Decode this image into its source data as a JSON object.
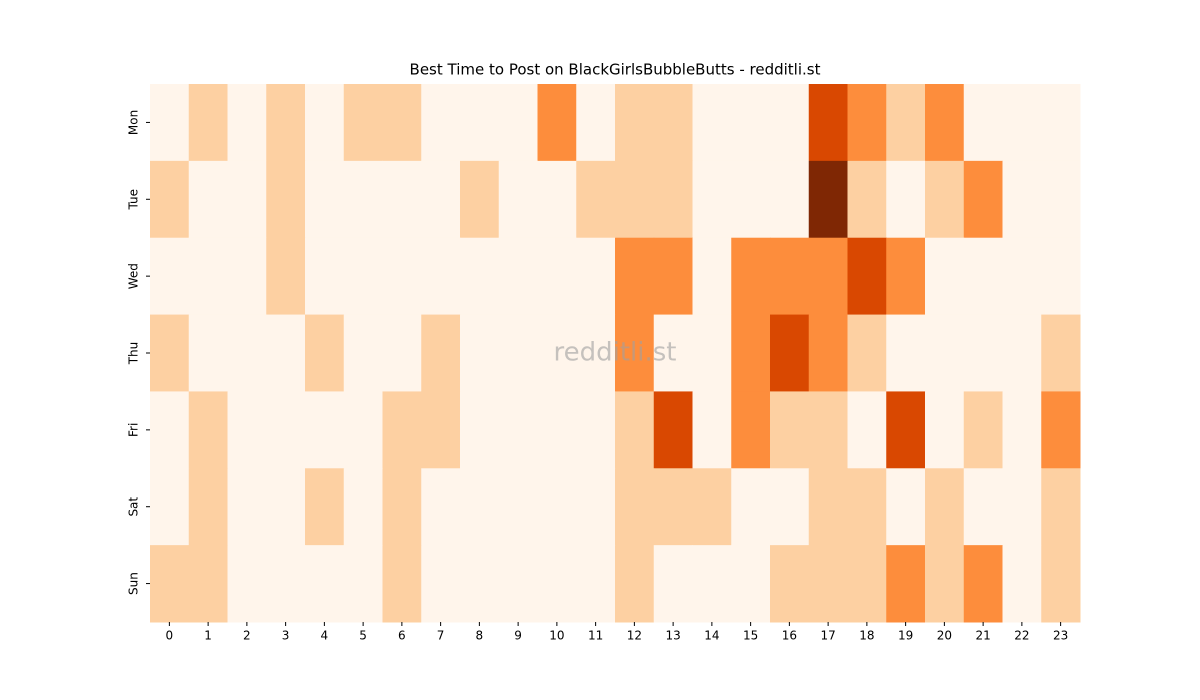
{
  "chart_data": {
    "type": "heatmap",
    "title": "Best Time to Post on BlackGirlsBubbleButts - redditli.st",
    "watermark": "redditli.st",
    "x_categories": [
      0,
      1,
      2,
      3,
      4,
      5,
      6,
      7,
      8,
      9,
      10,
      11,
      12,
      13,
      14,
      15,
      16,
      17,
      18,
      19,
      20,
      21,
      22,
      23
    ],
    "y_categories": [
      "Mon",
      "Tue",
      "Wed",
      "Thu",
      "Fri",
      "Sat",
      "Sun"
    ],
    "values": [
      [
        0,
        1,
        0,
        1,
        0,
        1,
        1,
        0,
        0,
        0,
        2,
        0,
        1,
        1,
        0,
        0,
        0,
        3,
        2,
        1,
        2,
        0,
        0,
        0
      ],
      [
        1,
        0,
        0,
        1,
        0,
        0,
        0,
        0,
        1,
        0,
        0,
        1,
        1,
        1,
        0,
        0,
        0,
        4,
        1,
        0,
        1,
        2,
        0,
        0
      ],
      [
        0,
        0,
        0,
        1,
        0,
        0,
        0,
        0,
        0,
        0,
        0,
        0,
        2,
        2,
        0,
        2,
        2,
        2,
        3,
        2,
        0,
        0,
        0,
        0
      ],
      [
        1,
        0,
        0,
        0,
        1,
        0,
        0,
        1,
        0,
        0,
        0,
        0,
        2,
        0,
        0,
        2,
        3,
        2,
        1,
        0,
        0,
        0,
        0,
        1
      ],
      [
        0,
        1,
        0,
        0,
        0,
        0,
        1,
        1,
        0,
        0,
        0,
        0,
        1,
        3,
        0,
        2,
        1,
        1,
        0,
        3,
        0,
        1,
        0,
        2
      ],
      [
        0,
        1,
        0,
        0,
        1,
        0,
        1,
        0,
        0,
        0,
        0,
        0,
        1,
        1,
        1,
        0,
        0,
        1,
        1,
        0,
        1,
        0,
        0,
        1
      ],
      [
        1,
        1,
        0,
        0,
        0,
        0,
        1,
        0,
        0,
        0,
        0,
        0,
        1,
        0,
        0,
        0,
        1,
        1,
        1,
        2,
        1,
        2,
        0,
        1
      ]
    ],
    "vlim": [
      0,
      4
    ],
    "colors": [
      "#fff5eb",
      "#fdd0a2",
      "#fd8d3c",
      "#d94801",
      "#7f2704"
    ]
  }
}
